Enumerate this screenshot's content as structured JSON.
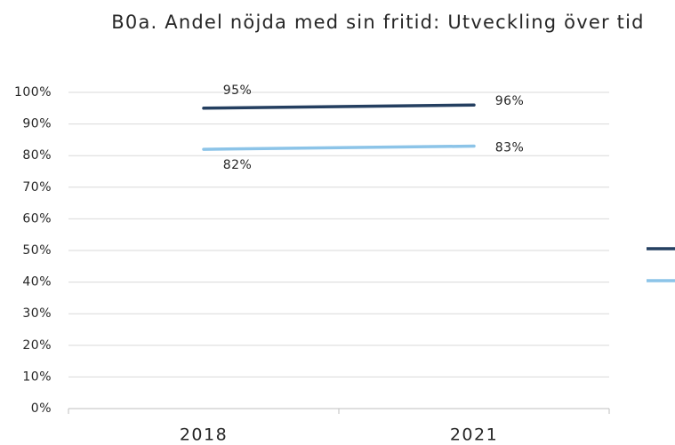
{
  "chart_data": {
    "type": "line",
    "title": "B0a. Andel nöjda med sin fritid: Utveckling över tid",
    "categories": [
      "2018",
      "2021"
    ],
    "series": [
      {
        "color": "#243f60",
        "values": [
          95,
          96
        ],
        "value_labels": [
          "95%",
          "96%"
        ]
      },
      {
        "color": "#8cc4e8",
        "values": [
          82,
          83
        ],
        "value_labels": [
          "82%",
          "83%"
        ]
      }
    ],
    "ylim": [
      0,
      100
    ],
    "yticks": [
      {
        "value": 0,
        "label": "0%"
      },
      {
        "value": 10,
        "label": "10%"
      },
      {
        "value": 20,
        "label": "20%"
      },
      {
        "value": 30,
        "label": "30%"
      },
      {
        "value": 40,
        "label": "40%"
      },
      {
        "value": 50,
        "label": "50%"
      },
      {
        "value": 60,
        "label": "60%"
      },
      {
        "value": 70,
        "label": "70%"
      },
      {
        "value": 80,
        "label": "80%"
      },
      {
        "value": 90,
        "label": "90%"
      },
      {
        "value": 100,
        "label": "100%"
      }
    ],
    "grid": true
  }
}
